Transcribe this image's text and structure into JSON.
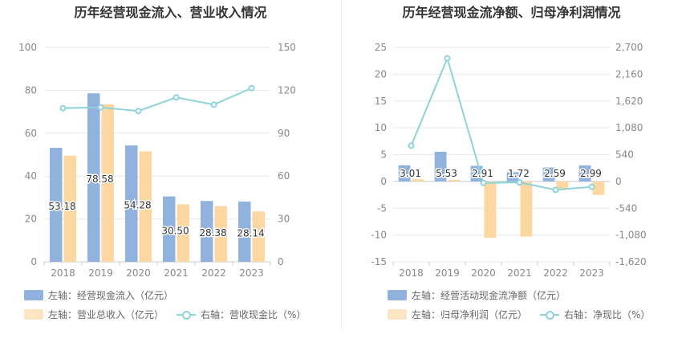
{
  "colors": {
    "bar1": "#92b2de",
    "bar2": "#fdd7a1",
    "line": "#8dd3d9",
    "grid": "#e6e9f0",
    "axis_text": "#888888"
  },
  "chart_data": [
    {
      "type": "bar",
      "title": "历年经营现金流入、营业收入情况",
      "categories": [
        "2018",
        "2019",
        "2020",
        "2021",
        "2022",
        "2023"
      ],
      "y_left_ticks": [
        "0",
        "20",
        "40",
        "60",
        "80",
        "100"
      ],
      "y_right_ticks": [
        "0",
        "30",
        "60",
        "90",
        "120",
        "150"
      ],
      "ylim_left": [
        0,
        100
      ],
      "ylim_right": [
        0,
        150
      ],
      "series": [
        {
          "name": "左轴：经营现金流入（亿元）",
          "type": "bar",
          "axis": "left",
          "values": [
            53.18,
            78.58,
            54.28,
            30.5,
            28.38,
            28.14
          ],
          "labels": [
            "53.18",
            "78.58",
            "54.28",
            "30.50",
            "28.38",
            "28.14"
          ]
        },
        {
          "name": "左轴：营业总收入（亿元）",
          "type": "bar",
          "axis": "left",
          "values": [
            49.5,
            73.5,
            51.5,
            26.8,
            26.0,
            23.5
          ]
        },
        {
          "name": "右轴：营收现金比（%）",
          "type": "line",
          "axis": "right",
          "values": [
            107.5,
            108,
            105.5,
            115,
            110,
            121.5
          ]
        }
      ],
      "legend": "bottom",
      "grid": true
    },
    {
      "type": "bar",
      "title": "历年经营现金流净额、归母净利润情况",
      "categories": [
        "2018",
        "2019",
        "2020",
        "2021",
        "2022",
        "2023"
      ],
      "y_left_ticks": [
        "-15",
        "-10",
        "-5",
        "0",
        "5",
        "10",
        "15",
        "20",
        "25"
      ],
      "y_right_ticks": [
        "-1,620",
        "-1,080",
        "-540",
        "0",
        "540",
        "1,080",
        "1,620",
        "2,160",
        "2,700"
      ],
      "ylim_left": [
        -15,
        25
      ],
      "ylim_right": [
        -1620,
        2700
      ],
      "series": [
        {
          "name": "左轴：经营活动现金流净额（亿元）",
          "type": "bar",
          "axis": "left",
          "values": [
            3.01,
            5.53,
            2.91,
            1.72,
            2.59,
            2.99
          ],
          "labels": [
            "3.01",
            "5.53",
            "2.91",
            "1.72",
            "2.59",
            "2.99"
          ]
        },
        {
          "name": "左轴：归母净利润（亿元）",
          "type": "bar",
          "axis": "left",
          "values": [
            0.4,
            0.3,
            -10.5,
            -10.3,
            -1.5,
            -2.5
          ]
        },
        {
          "name": "右轴：净现比（%）",
          "type": "line",
          "axis": "right",
          "values": [
            720,
            2480,
            -30,
            -20,
            -170,
            -110
          ]
        }
      ],
      "legend": "bottom",
      "grid": true
    }
  ]
}
